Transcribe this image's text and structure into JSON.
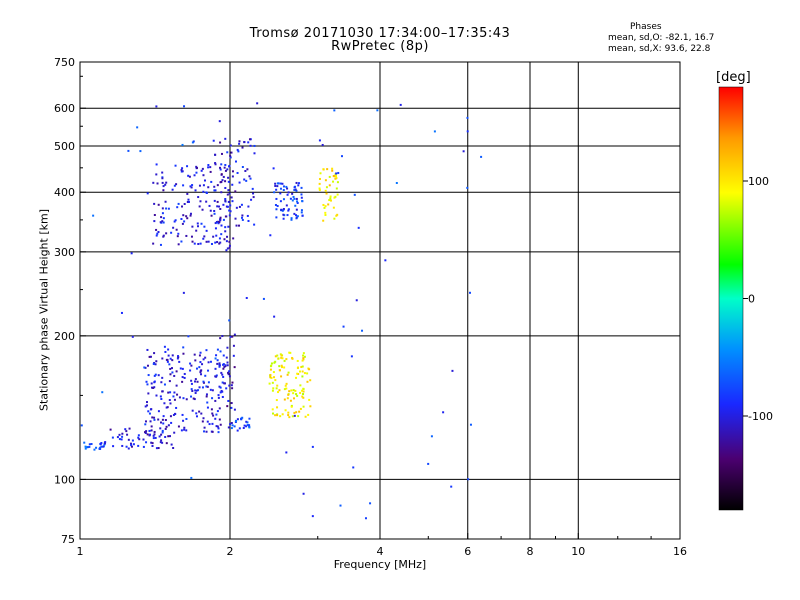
{
  "header": {
    "title": "Tromsø 20171030 17:34:00–17:35:43",
    "subtitle": "RwPretec (8p)",
    "stats_heading": "Phases",
    "stats_o": "mean, sd,O: -82.1, 16.7",
    "stats_x": "mean, sd,X:  93.6, 22.8"
  },
  "colorbar": {
    "unit": "[deg]",
    "range": [
      -180,
      180
    ],
    "ticks": [
      "100",
      "0",
      "-100"
    ],
    "tick_values": [
      100,
      0,
      -100
    ]
  },
  "chart_data": {
    "type": "scatter",
    "xlabel": "Frequency [MHz]",
    "ylabel": "Stationary phase Virtual Height [km]",
    "x_scale": "log",
    "y_scale": "log",
    "xlim": [
      1,
      16
    ],
    "ylim": [
      75,
      750
    ],
    "x_ticks": [
      1,
      2,
      4,
      6,
      8,
      10,
      16
    ],
    "x_tick_labels": [
      "1",
      "2",
      "4",
      "6",
      "8",
      "10",
      "16"
    ],
    "y_ticks": [
      75,
      100,
      200,
      300,
      400,
      500,
      600,
      750
    ],
    "y_tick_labels": [
      "75",
      "100",
      "200",
      "300",
      "400",
      "500",
      "600",
      "750"
    ],
    "grid_x": [
      2,
      4,
      6,
      8,
      10
    ],
    "grid_y": [
      100,
      200,
      300,
      400,
      500,
      600
    ],
    "color_scale": "phase [deg]",
    "clusters": [
      {
        "name": "low_trace_start",
        "f": [
          1.0,
          1.12
        ],
        "h": [
          115,
          120
        ],
        "phase": -70,
        "n": 20
      },
      {
        "name": "low_trace",
        "f": [
          1.12,
          1.55
        ],
        "h": [
          116,
          128
        ],
        "phase": -105,
        "n": 60
      },
      {
        "name": "low_E_cloud",
        "f": [
          1.35,
          1.95
        ],
        "h": [
          125,
          190
        ],
        "phase": -100,
        "n": 220
      },
      {
        "name": "low_E_edge",
        "f": [
          1.9,
          2.05
        ],
        "h": [
          128,
          205
        ],
        "phase": -110,
        "n": 40
      },
      {
        "name": "low_E_tail",
        "f": [
          2.0,
          2.2
        ],
        "h": [
          126,
          135
        ],
        "phase": -75,
        "n": 25
      },
      {
        "name": "low_X_cloud",
        "f": [
          2.4,
          2.9
        ],
        "h": [
          135,
          185
        ],
        "phase": 95,
        "n": 120
      },
      {
        "name": "F_trace_O",
        "f": [
          1.4,
          2.0
        ],
        "h": [
          310,
          460
        ],
        "phase": -100,
        "n": 160
      },
      {
        "name": "F_trace_edge",
        "f": [
          1.85,
          2.05
        ],
        "h": [
          300,
          520
        ],
        "phase": -105,
        "n": 60
      },
      {
        "name": "F_trace_2",
        "f": [
          2.05,
          2.25
        ],
        "h": [
          340,
          520
        ],
        "phase": -100,
        "n": 40
      },
      {
        "name": "F_cluster_O",
        "f": [
          2.45,
          2.8
        ],
        "h": [
          350,
          420
        ],
        "phase": -85,
        "n": 70
      },
      {
        "name": "F_cluster_X",
        "f": [
          3.0,
          3.3
        ],
        "h": [
          340,
          450
        ],
        "phase": 100,
        "n": 45
      },
      {
        "name": "sparse_high",
        "f": [
          1.0,
          6.5
        ],
        "h": [
          80,
          650
        ],
        "phase": -80,
        "n": 70
      }
    ]
  }
}
